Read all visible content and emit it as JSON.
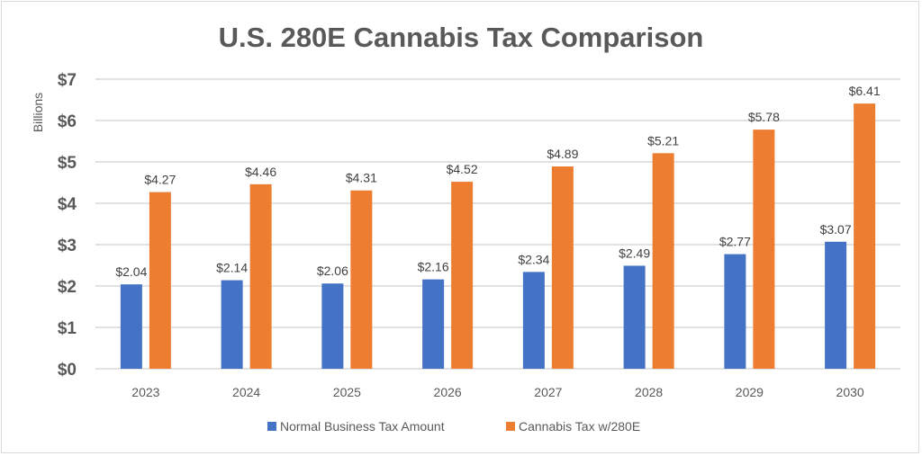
{
  "chart_data": {
    "type": "bar",
    "title": "U.S. 280E Cannabis Tax Comparison",
    "ylabel": "Billions",
    "xlabel": "",
    "categories": [
      "2023",
      "2024",
      "2025",
      "2026",
      "2027",
      "2028",
      "2029",
      "2030"
    ],
    "series": [
      {
        "name": "Normal Business Tax Amount",
        "color": "#4472C4",
        "values": [
          2.04,
          2.14,
          2.06,
          2.16,
          2.34,
          2.49,
          2.77,
          3.07
        ],
        "labels": [
          "$2.04",
          "$2.14",
          "$2.06",
          "$2.16",
          "$2.34",
          "$2.49",
          "$2.77",
          "$3.07"
        ]
      },
      {
        "name": "Cannabis Tax w/280E",
        "color": "#ED7D31",
        "values": [
          4.27,
          4.46,
          4.31,
          4.52,
          4.89,
          5.21,
          5.78,
          6.41
        ],
        "labels": [
          "$4.27",
          "$4.46",
          "$4.31",
          "$4.52",
          "$4.89",
          "$5.21",
          "$5.78",
          "$6.41"
        ]
      }
    ],
    "ylim": [
      0,
      7
    ],
    "yticks": [
      "$0",
      "$1",
      "$2",
      "$3",
      "$4",
      "$5",
      "$6",
      "$7"
    ],
    "grid": true,
    "legend": "bottom"
  }
}
